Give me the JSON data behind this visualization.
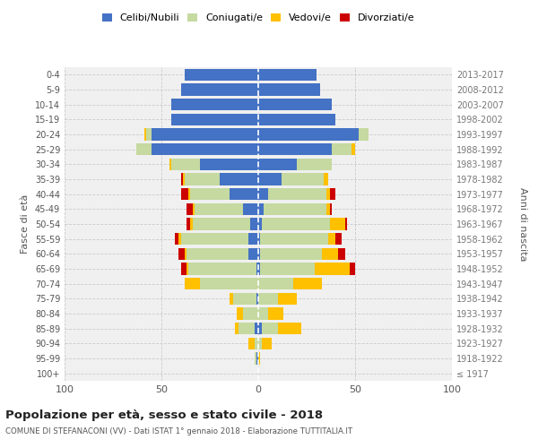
{
  "age_groups": [
    "100+",
    "95-99",
    "90-94",
    "85-89",
    "80-84",
    "75-79",
    "70-74",
    "65-69",
    "60-64",
    "55-59",
    "50-54",
    "45-49",
    "40-44",
    "35-39",
    "30-34",
    "25-29",
    "20-24",
    "15-19",
    "10-14",
    "5-9",
    "0-4"
  ],
  "birth_years": [
    "≤ 1917",
    "1918-1922",
    "1923-1927",
    "1928-1932",
    "1933-1937",
    "1938-1942",
    "1943-1947",
    "1948-1952",
    "1953-1957",
    "1958-1962",
    "1963-1967",
    "1968-1972",
    "1973-1977",
    "1978-1982",
    "1983-1987",
    "1988-1992",
    "1993-1997",
    "1998-2002",
    "2003-2007",
    "2008-2012",
    "2013-2017"
  ],
  "males": {
    "celibi": [
      0,
      1,
      0,
      2,
      0,
      1,
      0,
      1,
      5,
      5,
      4,
      8,
      15,
      20,
      30,
      55,
      55,
      45,
      45,
      40,
      38
    ],
    "coniugati": [
      0,
      1,
      2,
      8,
      8,
      12,
      30,
      35,
      32,
      35,
      30,
      25,
      20,
      18,
      15,
      8,
      3,
      0,
      0,
      0,
      0
    ],
    "vedovi": [
      0,
      0,
      3,
      2,
      3,
      2,
      8,
      1,
      1,
      1,
      1,
      1,
      1,
      1,
      1,
      0,
      1,
      0,
      0,
      0,
      0
    ],
    "divorziati": [
      0,
      0,
      0,
      0,
      0,
      0,
      0,
      3,
      3,
      2,
      2,
      3,
      4,
      1,
      0,
      0,
      0,
      0,
      0,
      0,
      0
    ]
  },
  "females": {
    "nubili": [
      0,
      0,
      0,
      2,
      0,
      0,
      0,
      1,
      1,
      1,
      2,
      3,
      5,
      12,
      20,
      38,
      52,
      40,
      38,
      32,
      30
    ],
    "coniugate": [
      0,
      0,
      2,
      8,
      5,
      10,
      18,
      28,
      32,
      35,
      35,
      32,
      30,
      22,
      18,
      10,
      5,
      0,
      0,
      0,
      0
    ],
    "vedove": [
      0,
      1,
      5,
      12,
      8,
      10,
      15,
      18,
      8,
      4,
      8,
      2,
      2,
      2,
      0,
      2,
      0,
      0,
      0,
      0,
      0
    ],
    "divorziate": [
      0,
      0,
      0,
      0,
      0,
      0,
      0,
      3,
      4,
      3,
      1,
      1,
      3,
      0,
      0,
      0,
      0,
      0,
      0,
      0,
      0
    ]
  },
  "colors": {
    "celibi_nubili": "#4472c4",
    "coniugati": "#c5d9a0",
    "vedovi": "#ffc000",
    "divorziati": "#cc0000"
  },
  "xlim": [
    -100,
    100
  ],
  "title": "Popolazione per età, sesso e stato civile - 2018",
  "subtitle": "COMUNE DI STEFANACONI (VV) - Dati ISTAT 1° gennaio 2018 - Elaborazione TUTTITALIA.IT",
  "ylabel": "Fasce di età",
  "ylabel_right": "Anni di nascita",
  "bg_color": "#f0f0f0",
  "grid_color": "#cccccc"
}
